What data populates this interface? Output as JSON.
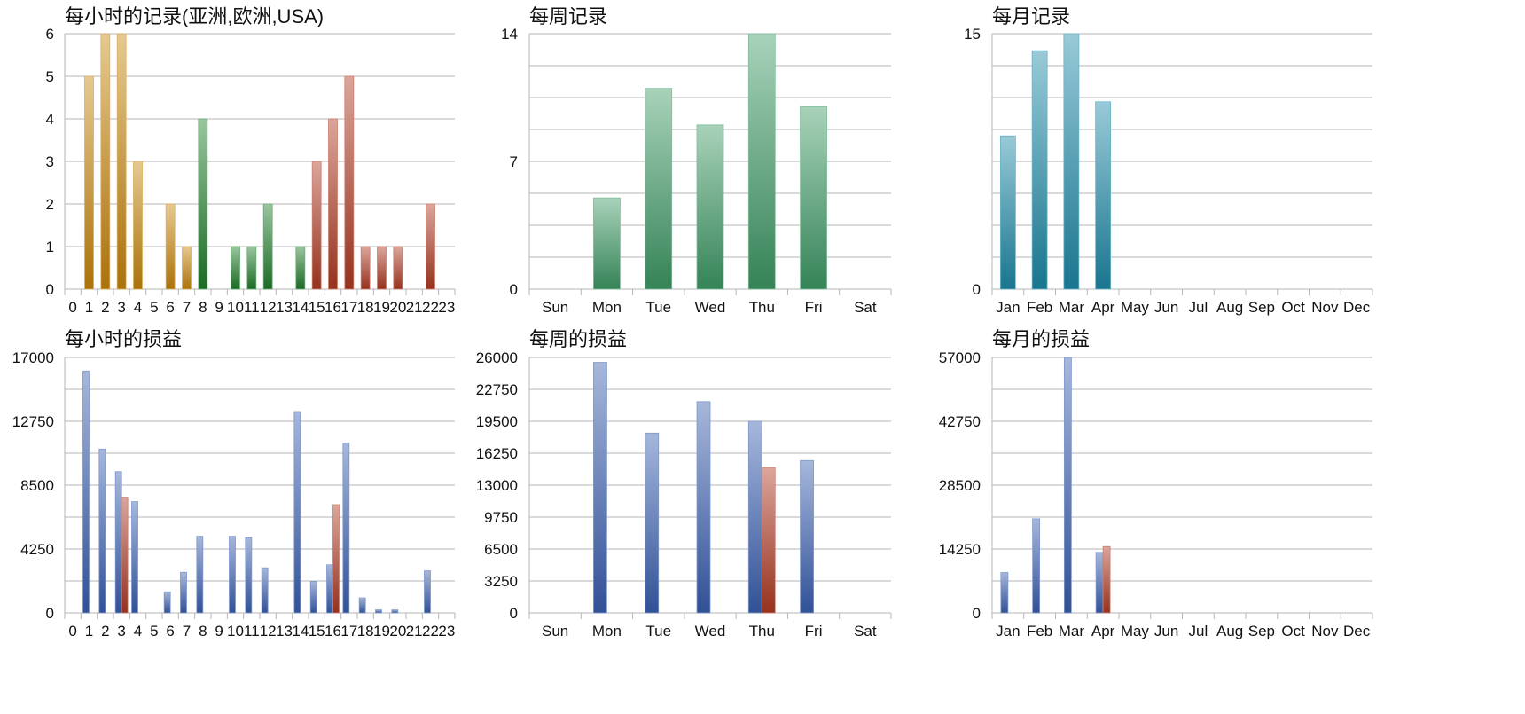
{
  "chart_data": [
    {
      "type": "bar",
      "title": "每小时的记录(亚洲,欧洲,USA)",
      "categories": [
        "0",
        "1",
        "2",
        "3",
        "4",
        "5",
        "6",
        "7",
        "8",
        "9",
        "10",
        "11",
        "12",
        "13",
        "14",
        "15",
        "16",
        "17",
        "18",
        "19",
        "20",
        "21",
        "22",
        "23"
      ],
      "ylim": [
        0,
        6
      ],
      "yticks": [
        "0",
        "1",
        "2",
        "3",
        "4",
        "5",
        "6"
      ],
      "series": [
        {
          "values": [
            0,
            5,
            6,
            6,
            3,
            0,
            2,
            1,
            4,
            0,
            1,
            1,
            2,
            0,
            1,
            3,
            4,
            5,
            1,
            1,
            1,
            0,
            2,
            0
          ],
          "colors": [
            "#c8860b",
            "#c8860b",
            "#c8860b",
            "#c8860b",
            "#c8860b",
            "#c8860b",
            "#c8860b",
            "#c8860b",
            "#1e7d2a",
            "#1e7d2a",
            "#1e7d2a",
            "#1e7d2a",
            "#1e7d2a",
            "#1e7d2a",
            "#1e7d2a",
            "#b03a22",
            "#b03a22",
            "#b03a22",
            "#b03a22",
            "#b03a22",
            "#b03a22",
            "#b03a22",
            "#b03a22",
            "#b03a22"
          ]
        }
      ],
      "grid": true
    },
    {
      "type": "bar",
      "title": "每周记录",
      "categories": [
        "Sun",
        "Mon",
        "Tue",
        "Wed",
        "Thu",
        "Fri",
        "Sat"
      ],
      "ylim": [
        0,
        14
      ],
      "yticks": [
        "0",
        "7",
        "14"
      ],
      "series": [
        {
          "values": [
            0,
            5,
            11,
            9,
            14,
            10,
            0
          ],
          "color": "#3e9a66"
        }
      ],
      "grid": true
    },
    {
      "type": "bar",
      "title": "每月记录",
      "categories": [
        "Jan",
        "Feb",
        "Mar",
        "Apr",
        "May",
        "Jun",
        "Jul",
        "Aug",
        "Sep",
        "Oct",
        "Nov",
        "Dec"
      ],
      "ylim": [
        0,
        15
      ],
      "yticks": [
        "0",
        "15"
      ],
      "series": [
        {
          "values": [
            9,
            14,
            15,
            11,
            0,
            0,
            0,
            0,
            0,
            0,
            0,
            0
          ],
          "color": "#1d8aa8"
        }
      ],
      "grid": true
    },
    {
      "type": "bar",
      "title": "每小时的损益",
      "categories": [
        "0",
        "1",
        "2",
        "3",
        "4",
        "5",
        "6",
        "7",
        "8",
        "9",
        "10",
        "11",
        "12",
        "13",
        "14",
        "15",
        "16",
        "17",
        "18",
        "19",
        "20",
        "21",
        "22",
        "23"
      ],
      "ylim": [
        0,
        17000
      ],
      "yticks": [
        "0",
        "4250",
        "8500",
        "12750",
        "17000"
      ],
      "series": [
        {
          "values": [
            0,
            16100,
            10900,
            9400,
            7400,
            0,
            1400,
            2700,
            5100,
            0,
            5100,
            5000,
            3000,
            0,
            13400,
            2100,
            3200,
            11300,
            1000,
            200,
            200,
            0,
            2800,
            0
          ],
          "color": "#3a5fb0"
        },
        {
          "values": [
            0,
            0,
            0,
            7700,
            0,
            0,
            0,
            0,
            0,
            0,
            0,
            0,
            0,
            0,
            0,
            0,
            7200,
            0,
            0,
            0,
            0,
            0,
            0,
            0
          ],
          "color": "#b03a22"
        }
      ],
      "grid": true
    },
    {
      "type": "bar",
      "title": "每周的损益",
      "categories": [
        "Sun",
        "Mon",
        "Tue",
        "Wed",
        "Thu",
        "Fri",
        "Sat"
      ],
      "ylim": [
        0,
        26000
      ],
      "yticks": [
        "0",
        "3250",
        "6500",
        "9750",
        "13000",
        "16250",
        "19500",
        "22750",
        "26000"
      ],
      "series": [
        {
          "values": [
            0,
            25500,
            18300,
            21500,
            19500,
            15500,
            0
          ],
          "color": "#3a5fb0"
        },
        {
          "values": [
            0,
            0,
            0,
            0,
            14800,
            0,
            0
          ],
          "color": "#b03a22"
        }
      ],
      "grid": true
    },
    {
      "type": "bar",
      "title": "每月的损益",
      "categories": [
        "Jan",
        "Feb",
        "Mar",
        "Apr",
        "May",
        "Jun",
        "Jul",
        "Aug",
        "Sep",
        "Oct",
        "Nov",
        "Dec"
      ],
      "ylim": [
        0,
        57000
      ],
      "yticks": [
        "0",
        "14250",
        "28500",
        "42750",
        "57000"
      ],
      "series": [
        {
          "values": [
            9000,
            21000,
            57000,
            13500,
            0,
            0,
            0,
            0,
            0,
            0,
            0,
            0
          ],
          "color": "#3a5fb0"
        },
        {
          "values": [
            0,
            0,
            0,
            14800,
            0,
            0,
            0,
            0,
            0,
            0,
            0,
            0
          ],
          "color": "#b03a22"
        }
      ],
      "grid": true
    }
  ]
}
